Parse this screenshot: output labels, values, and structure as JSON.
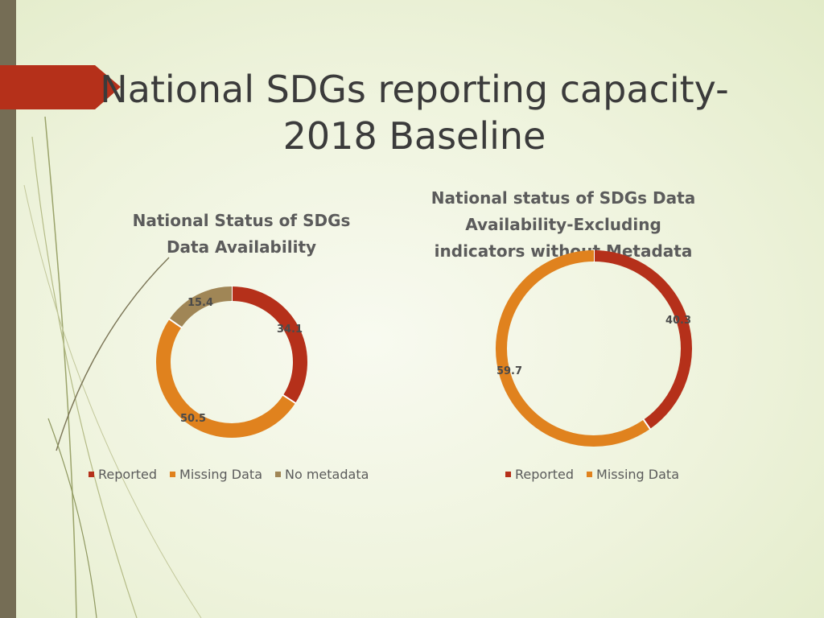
{
  "slide": {
    "title_line1": "National SDGs reporting capacity-",
    "title_line2": "2018 Baseline"
  },
  "colors": {
    "reported": "#b5301a",
    "missing_data": "#e0821e",
    "no_metadata": "#a08656",
    "accent_bar": "#756d55"
  },
  "chart_data": [
    {
      "type": "pie",
      "style": "donut",
      "title_line1": "National Status of SDGs",
      "title_line2": "Data Availability",
      "slices": [
        {
          "label": "Reported",
          "value": 34.1,
          "value_label": "34.1",
          "color": "#b5301a"
        },
        {
          "label": "Missing Data",
          "value": 50.5,
          "value_label": "50.5",
          "color": "#e0821e"
        },
        {
          "label": "No metadata",
          "value": 15.4,
          "value_label": "15.4",
          "color": "#a08656"
        }
      ],
      "legend_position": "bottom"
    },
    {
      "type": "pie",
      "style": "donut",
      "title_line1": "National status of SDGs Data",
      "title_line2": "Availability-Excluding",
      "title_line3": "indicators without Metadata",
      "slices": [
        {
          "label": "Reported",
          "value": 40.3,
          "value_label": "40.3",
          "color": "#b5301a"
        },
        {
          "label": "Missing Data",
          "value": 59.7,
          "value_label": "59.7",
          "color": "#e0821e"
        }
      ],
      "legend_position": "bottom"
    }
  ]
}
